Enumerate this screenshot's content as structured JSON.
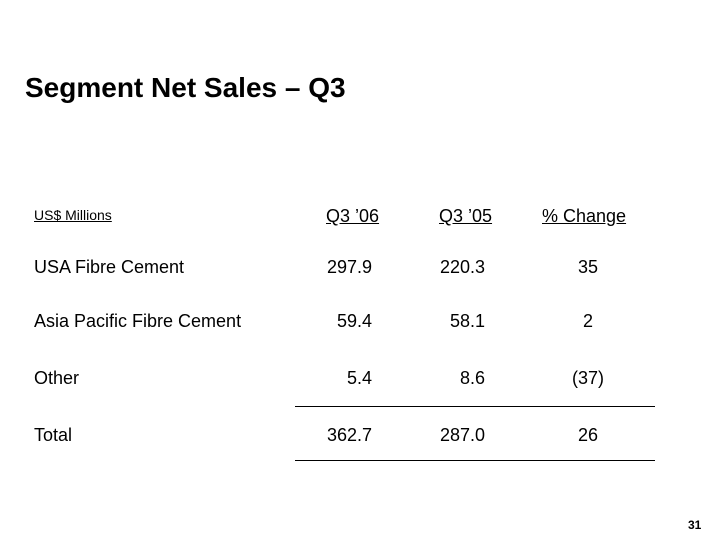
{
  "slide": {
    "title": "Segment Net Sales – Q3",
    "page_number": "31"
  },
  "table": {
    "units_label": "US$ Millions",
    "columns": [
      "Q3 ’06",
      "Q3 ’05",
      "% Change"
    ],
    "rows": [
      {
        "label": "USA Fibre Cement",
        "values": [
          "297.9",
          "220.3",
          "35"
        ]
      },
      {
        "label": "Asia Pacific Fibre Cement",
        "values": [
          "59.4",
          "58.1",
          "2"
        ]
      },
      {
        "label": "Other",
        "values": [
          "5.4",
          "8.6",
          "(37)"
        ]
      },
      {
        "label": "Total",
        "values": [
          "362.7",
          "287.0",
          "26"
        ]
      }
    ]
  }
}
